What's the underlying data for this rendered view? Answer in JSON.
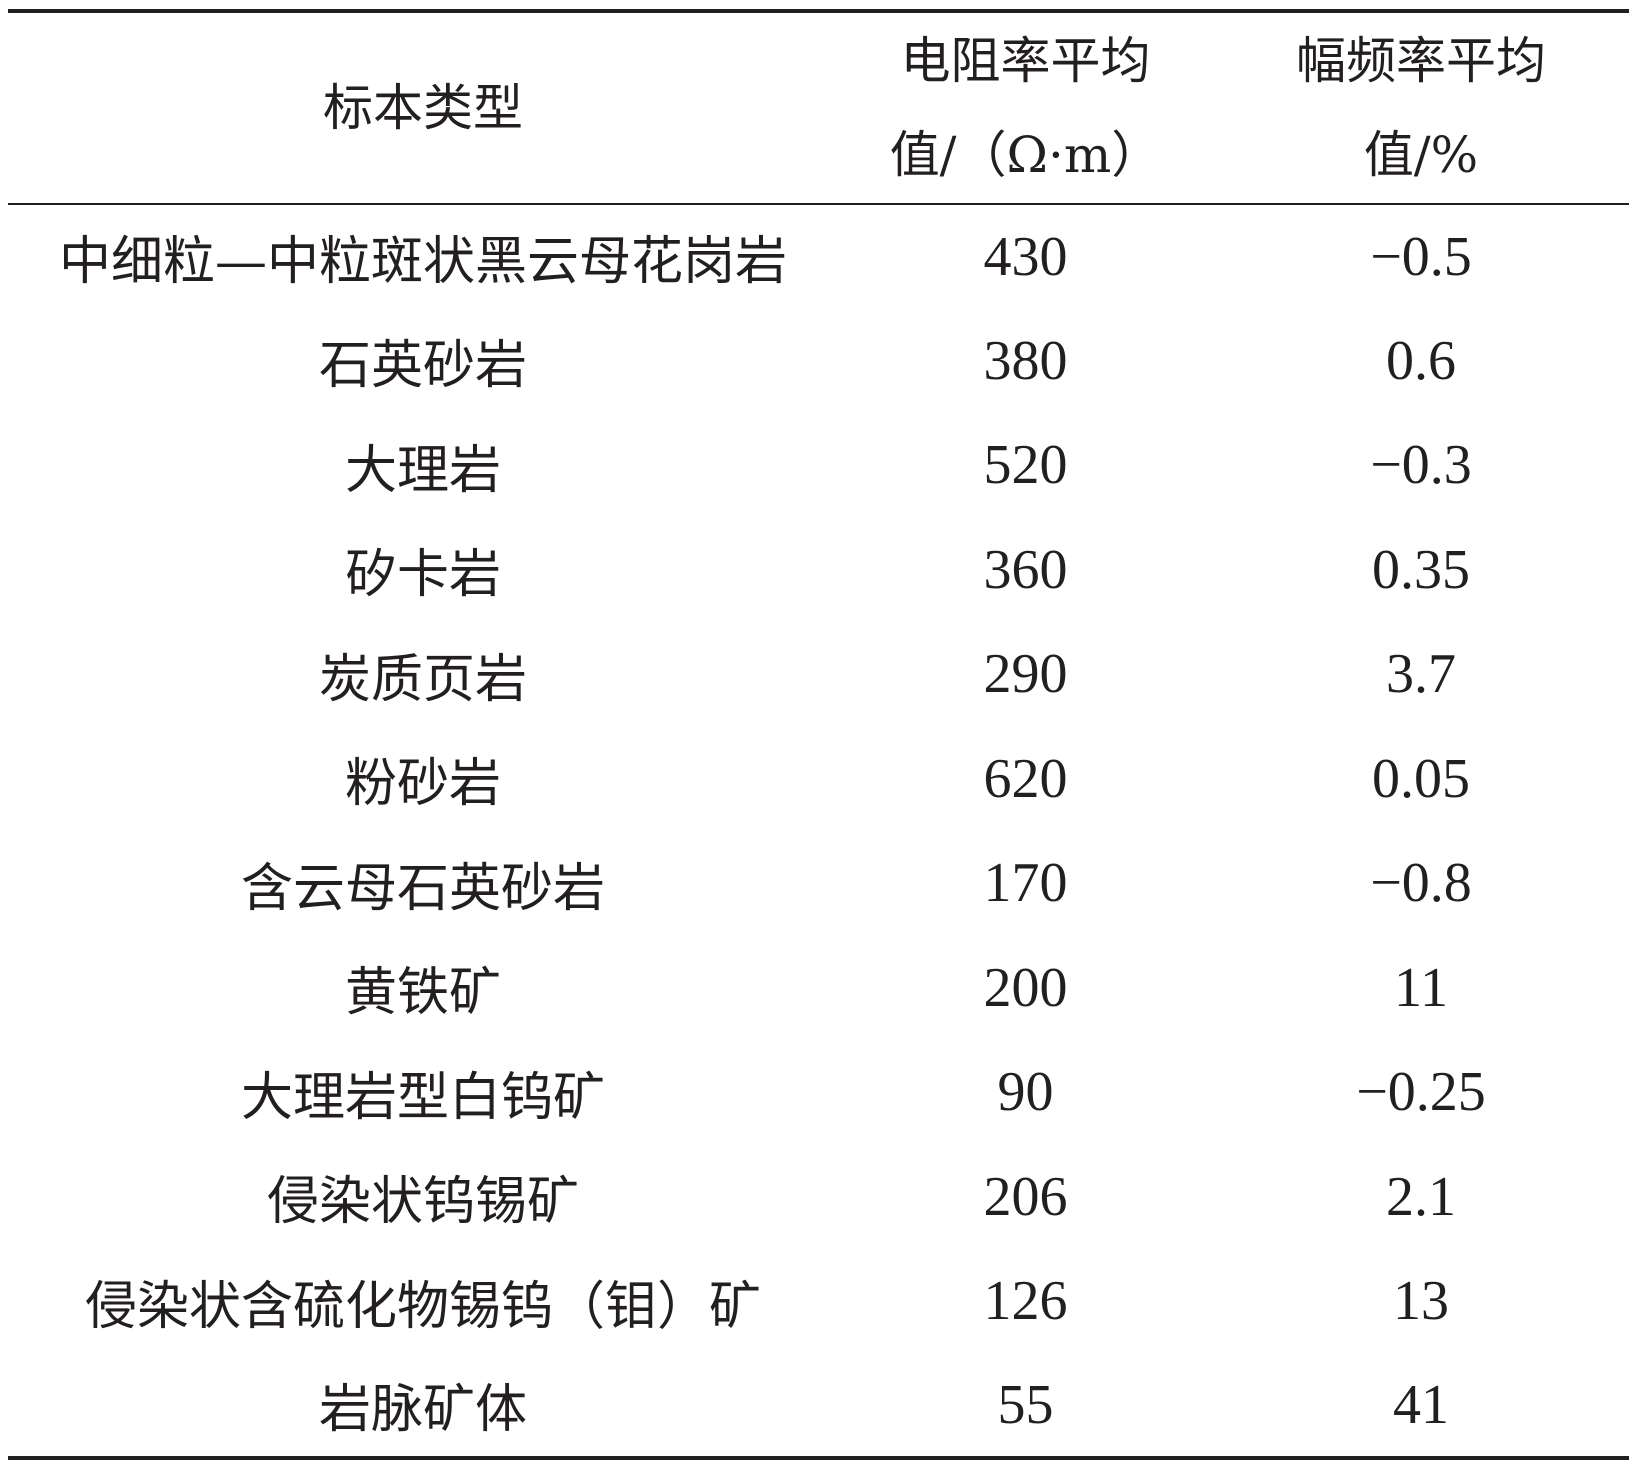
{
  "table": {
    "headers": [
      [
        "标本类型"
      ],
      [
        "电阻率平均",
        "值/（Ω·m）"
      ],
      [
        "幅频率平均",
        "值/%"
      ]
    ],
    "rows": [
      {
        "type": "中细粒—中粒斑状黑云母花岗岩",
        "resistivity": "430",
        "amp_freq": "−0.5"
      },
      {
        "type": "石英砂岩",
        "resistivity": "380",
        "amp_freq": "0.6"
      },
      {
        "type": "大理岩",
        "resistivity": "520",
        "amp_freq": "−0.3"
      },
      {
        "type": "矽卡岩",
        "resistivity": "360",
        "amp_freq": "0.35"
      },
      {
        "type": "炭质页岩",
        "resistivity": "290",
        "amp_freq": "3.7"
      },
      {
        "type": "粉砂岩",
        "resistivity": "620",
        "amp_freq": "0.05"
      },
      {
        "type": "含云母石英砂岩",
        "resistivity": "170",
        "amp_freq": "−0.8"
      },
      {
        "type": "黄铁矿",
        "resistivity": "200",
        "amp_freq": "11"
      },
      {
        "type": "大理岩型白钨矿",
        "resistivity": "90",
        "amp_freq": "−0.25"
      },
      {
        "type": "侵染状钨锡矿",
        "resistivity": "206",
        "amp_freq": "2.1"
      },
      {
        "type": "侵染状含硫化物锡钨（钼）矿",
        "resistivity": "126",
        "amp_freq": "13"
      },
      {
        "type": "岩脉矿体",
        "resistivity": "55",
        "amp_freq": "41"
      }
    ]
  }
}
